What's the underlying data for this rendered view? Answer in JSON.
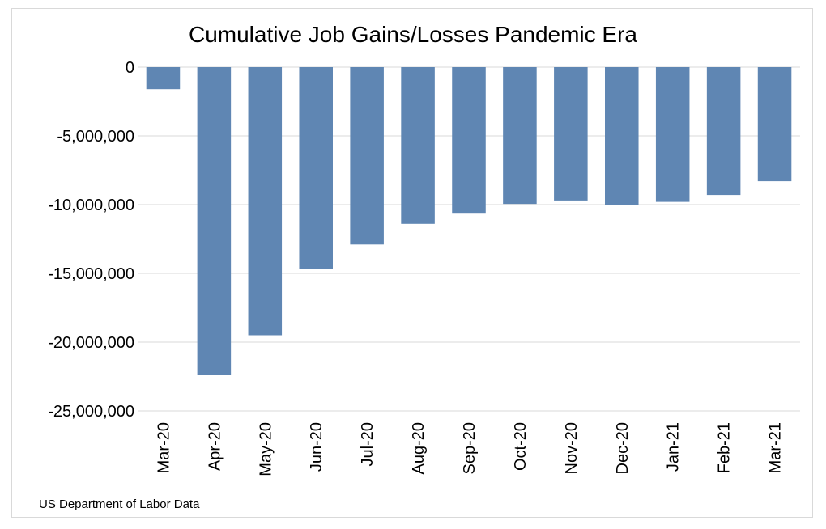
{
  "chart_data": {
    "type": "bar",
    "title": "Cumulative Job Gains/Losses Pandemic Era",
    "xlabel": "",
    "ylabel": "",
    "categories": [
      "Mar-20",
      "Apr-20",
      "May-20",
      "Jun-20",
      "Jul-20",
      "Aug-20",
      "Sep-20",
      "Oct-20",
      "Nov-20",
      "Dec-20",
      "Jan-21",
      "Feb-21",
      "Mar-21"
    ],
    "values": [
      -1600000,
      -22400000,
      -19500000,
      -14700000,
      -12900000,
      -11400000,
      -10600000,
      -9950000,
      -9700000,
      -10000000,
      -9800000,
      -9300000,
      -8300000
    ],
    "ylim": [
      -25000000,
      0
    ],
    "yticks": [
      0,
      -5000000,
      -10000000,
      -15000000,
      -20000000,
      -25000000
    ],
    "ytick_labels": [
      "0",
      "-5,000,000",
      "-10,000,000",
      "-15,000,000",
      "-20,000,000",
      "-25,000,000"
    ],
    "grid": true,
    "bar_color": "#5f86b3",
    "grid_color": "#d9d9d9",
    "source_note": "US Department of Labor Data"
  }
}
